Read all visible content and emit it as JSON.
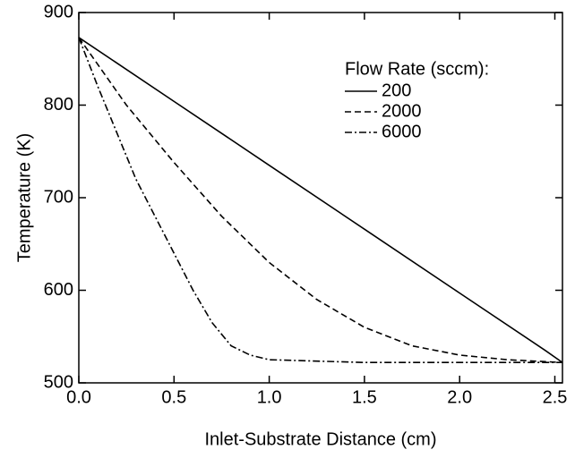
{
  "chart_data": {
    "type": "line",
    "xlabel": "Inlet-Substrate Distance (cm)",
    "ylabel": "Temperature (K)",
    "legend_title": "Flow Rate (sccm):",
    "legend": "upper right",
    "xlim": [
      0,
      2.54
    ],
    "ylim": [
      500,
      900
    ],
    "xticks": [
      {
        "value": 0,
        "label": "0.0"
      },
      0.5,
      {
        "value": 1,
        "label": "1.0"
      },
      1.5,
      {
        "value": 2,
        "label": "2.0"
      },
      2.5
    ],
    "yticks": [
      500,
      600,
      700,
      800,
      900
    ],
    "series": [
      {
        "name": "200",
        "color": "#000000",
        "dash": "solid",
        "x": [
          0,
          0.5,
          1.0,
          1.5,
          2.0,
          2.45,
          2.54
        ],
        "values": [
          873,
          804,
          735,
          666,
          597,
          535,
          522
        ]
      },
      {
        "name": "2000",
        "color": "#000000",
        "dash": "dashed",
        "x": [
          0,
          0.25,
          0.5,
          0.75,
          1.0,
          1.25,
          1.5,
          1.75,
          2.0,
          2.25,
          2.54
        ],
        "values": [
          873,
          800,
          738,
          680,
          630,
          590,
          560,
          540,
          530,
          525,
          522
        ]
      },
      {
        "name": "6000",
        "color": "#000000",
        "dash": "dashdot",
        "x": [
          0,
          0.1,
          0.2,
          0.3,
          0.4,
          0.5,
          0.6,
          0.7,
          0.8,
          0.9,
          1.0,
          1.5,
          2.54
        ],
        "values": [
          873,
          820,
          770,
          720,
          680,
          640,
          600,
          565,
          540,
          530,
          525,
          522,
          522
        ]
      }
    ]
  }
}
